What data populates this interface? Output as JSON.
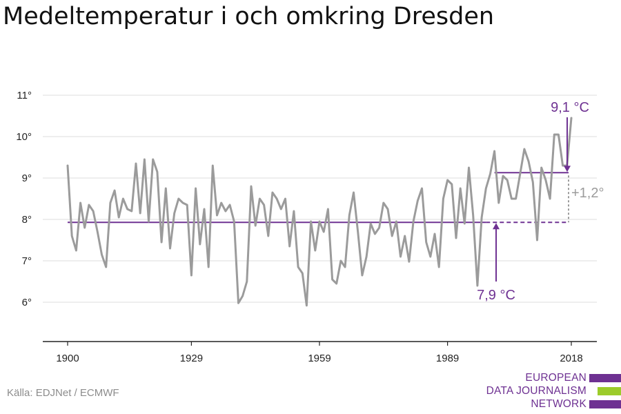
{
  "title": "Medeltemperatur i och omkring Dresden",
  "source": "Källa: EDJNet / ECMWF",
  "logo": {
    "lines": [
      "EUROPEAN",
      "DATA JOURNALISM",
      "NETWORK"
    ],
    "bar_colors": [
      "#6e3192",
      "#9ccc2a",
      "#6e3192"
    ]
  },
  "colors": {
    "series": "#9b9b9b",
    "accent": "#6e3192",
    "diff": "#9b9b9b",
    "grid": "#dedede",
    "axis": "#222222"
  },
  "chart_data": {
    "type": "line",
    "title": "Medeltemperatur i och omkring Dresden",
    "xlabel": "",
    "ylabel": "",
    "xlim": [
      1898,
      2020
    ],
    "ylim": [
      5,
      11
    ],
    "grid": "horizontal",
    "x_ticks": [
      1900,
      1929,
      1959,
      1989,
      2018
    ],
    "y_ticks": [
      6,
      7,
      8,
      9,
      10,
      11
    ],
    "y_tick_labels": [
      "6°",
      "7°",
      "8°",
      "9°",
      "10°",
      "11°"
    ],
    "x": [
      1900,
      1901,
      1902,
      1903,
      1904,
      1905,
      1906,
      1907,
      1908,
      1909,
      1910,
      1911,
      1912,
      1913,
      1914,
      1915,
      1916,
      1917,
      1918,
      1919,
      1920,
      1921,
      1922,
      1923,
      1924,
      1925,
      1926,
      1927,
      1928,
      1929,
      1930,
      1931,
      1932,
      1933,
      1934,
      1935,
      1936,
      1937,
      1938,
      1939,
      1940,
      1941,
      1942,
      1943,
      1944,
      1945,
      1946,
      1947,
      1948,
      1949,
      1950,
      1951,
      1952,
      1953,
      1954,
      1955,
      1956,
      1957,
      1958,
      1959,
      1960,
      1961,
      1962,
      1963,
      1964,
      1965,
      1966,
      1967,
      1968,
      1969,
      1970,
      1971,
      1972,
      1973,
      1974,
      1975,
      1976,
      1977,
      1978,
      1979,
      1980,
      1981,
      1982,
      1983,
      1984,
      1985,
      1986,
      1987,
      1988,
      1989,
      1990,
      1991,
      1992,
      1993,
      1994,
      1995,
      1996,
      1997,
      1998,
      1999,
      2000,
      2001,
      2002,
      2003,
      2004,
      2005,
      2006,
      2007,
      2008,
      2009,
      2010,
      2011,
      2012,
      2013,
      2014,
      2015,
      2016,
      2017,
      2018
    ],
    "series": [
      {
        "values": [
          9.3,
          7.6,
          7.25,
          8.4,
          7.8,
          8.35,
          8.2,
          7.7,
          7.15,
          6.85,
          8.4,
          8.7,
          8.05,
          8.5,
          8.25,
          8.2,
          9.35,
          8.15,
          9.45,
          7.95,
          9.45,
          9.15,
          7.45,
          8.75,
          7.3,
          8.15,
          8.5,
          8.4,
          8.35,
          6.65,
          8.75,
          7.4,
          8.25,
          6.85,
          9.3,
          8.1,
          8.4,
          8.2,
          8.35,
          7.95,
          5.98,
          6.15,
          6.5,
          8.8,
          7.85,
          8.5,
          8.35,
          7.6,
          8.65,
          8.5,
          8.25,
          8.5,
          7.35,
          8.2,
          6.85,
          6.7,
          5.92,
          7.95,
          7.25,
          7.95,
          7.7,
          8.25,
          6.55,
          6.45,
          7.0,
          6.85,
          8.1,
          8.65,
          7.7,
          6.65,
          7.1,
          7.9,
          7.65,
          7.8,
          8.4,
          8.25,
          7.6,
          7.95,
          7.1,
          7.6,
          6.98,
          7.95,
          8.45,
          8.75,
          7.45,
          7.1,
          7.65,
          6.85,
          8.5,
          8.95,
          8.85,
          7.55,
          8.75,
          7.9,
          9.25,
          8.1,
          6.4,
          8.05,
          8.75,
          9.1,
          9.65,
          8.4,
          9.05,
          8.95,
          8.5,
          8.5,
          9.1,
          9.7,
          9.4,
          8.9,
          7.5,
          9.25,
          8.95,
          8.5,
          10.05,
          10.05,
          9.3,
          9.3,
          10.45
        ]
      }
    ],
    "reference_lines": [
      {
        "label": "7,9 °C",
        "value": 7.93,
        "from": 1900,
        "to": 2018
      },
      {
        "label": "9,1 °C",
        "value": 9.13,
        "from": 2000,
        "to": 2018
      }
    ],
    "annotations": [
      {
        "text": "9,1 °C"
      },
      {
        "text": "7,9 °C"
      },
      {
        "text": "+1,2°"
      }
    ]
  }
}
